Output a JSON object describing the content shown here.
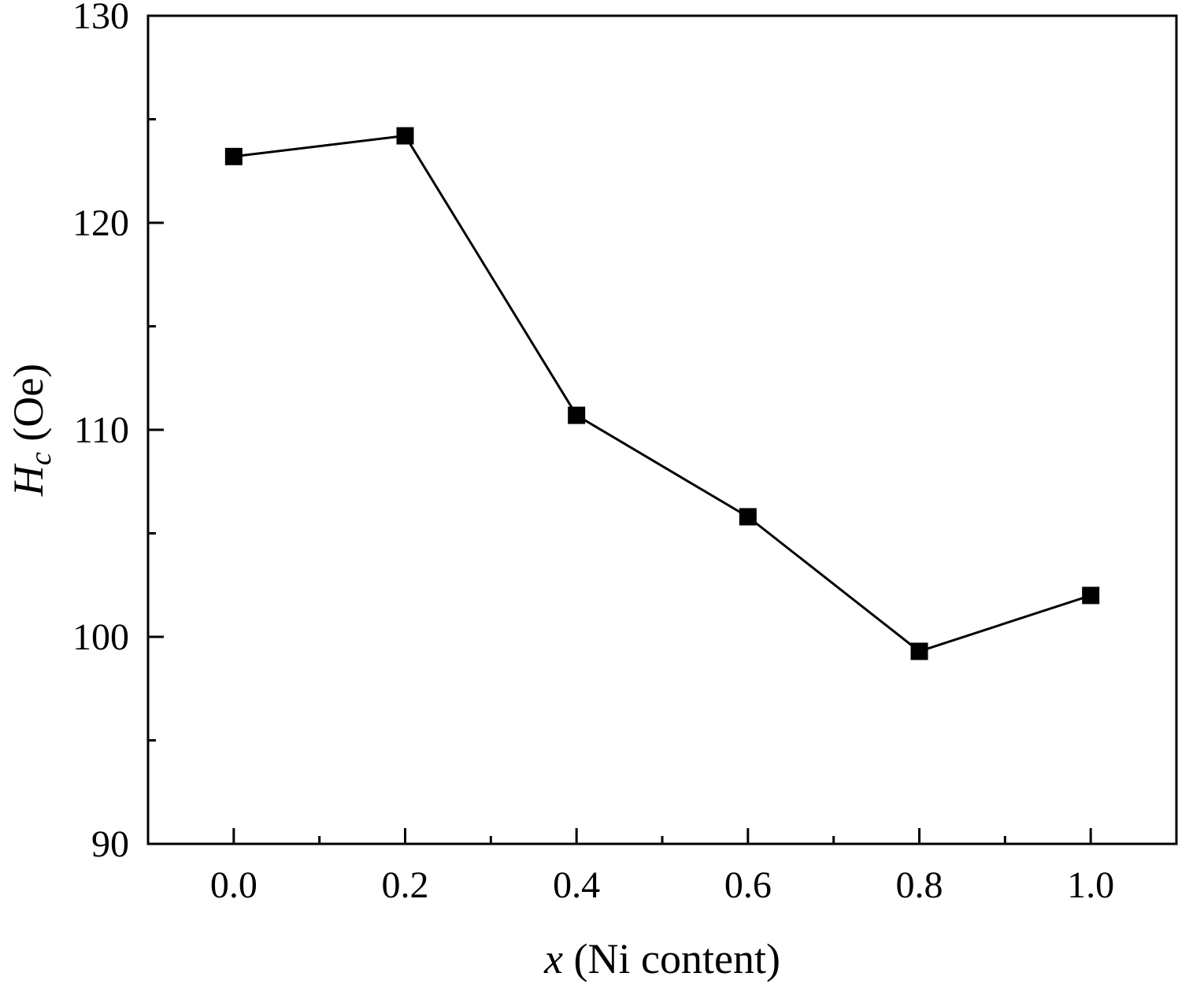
{
  "chart_data": {
    "type": "line",
    "title": "",
    "xlabel": {
      "symbol": "x",
      "rest": " (Ni content)"
    },
    "ylabel": {
      "symbol": "H",
      "subscript": "c",
      "rest": " (Oe)"
    },
    "xlim": [
      -0.1,
      1.1
    ],
    "ylim": [
      90,
      130
    ],
    "x_ticks": [
      0.0,
      0.2,
      0.4,
      0.6,
      0.8,
      1.0
    ],
    "x_tick_labels": [
      "0.0",
      "0.2",
      "0.4",
      "0.6",
      "0.8",
      "1.0"
    ],
    "x_minor_ticks": [
      0.1,
      0.3,
      0.5,
      0.7,
      0.9
    ],
    "y_ticks": [
      90,
      100,
      110,
      120,
      130
    ],
    "y_tick_labels": [
      "90",
      "100",
      "110",
      "120",
      "130"
    ],
    "y_minor_ticks": [
      95,
      105,
      115,
      125
    ],
    "grid": false,
    "series": [
      {
        "marker": "square",
        "color": "#000000",
        "x": [
          0.0,
          0.2,
          0.4,
          0.6,
          0.8,
          1.0
        ],
        "y": [
          123.2,
          124.2,
          110.7,
          105.8,
          99.3,
          102.0
        ]
      }
    ]
  }
}
